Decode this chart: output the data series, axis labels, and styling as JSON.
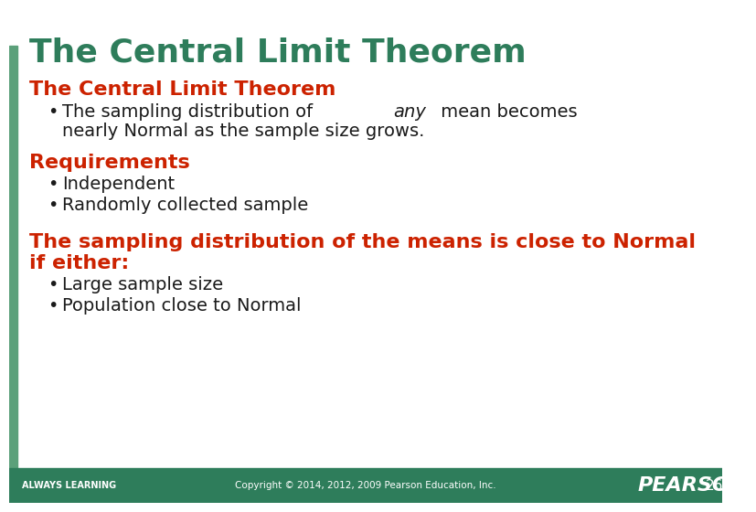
{
  "title": "The Central Limit Theorem",
  "title_color": "#2E7D5B",
  "title_fontsize": 26,
  "background_color": "#FFFFFF",
  "left_bar_color": "#5BA07A",
  "footer_bg_color": "#2E7D5B",
  "footer_text_color": "#FFFFFF",
  "footer_left": "ALWAYS LEARNING",
  "footer_center": "Copyright © 2014, 2012, 2009 Pearson Education, Inc.",
  "footer_right": "PEARSON",
  "footer_page": "26",
  "red_color": "#CC2200",
  "black_color": "#1A1A1A",
  "section1_heading": "The Central Limit Theorem",
  "section1_bullet1_part1": "The sampling distribution of ",
  "section1_bullet1_italic": "any",
  "section1_bullet1_part2": " mean becomes",
  "section1_bullet1_line2": "nearly Normal as the sample size grows.",
  "section2_heading": "Requirements",
  "section2_bullet1": "Independent",
  "section2_bullet2": "Randomly collected sample",
  "section3_heading_line1": "The sampling distribution of the means is close to Normal",
  "section3_heading_line2": "if either:",
  "section3_bullet1": "Large sample size",
  "section3_bullet2": "Population close to Normal"
}
